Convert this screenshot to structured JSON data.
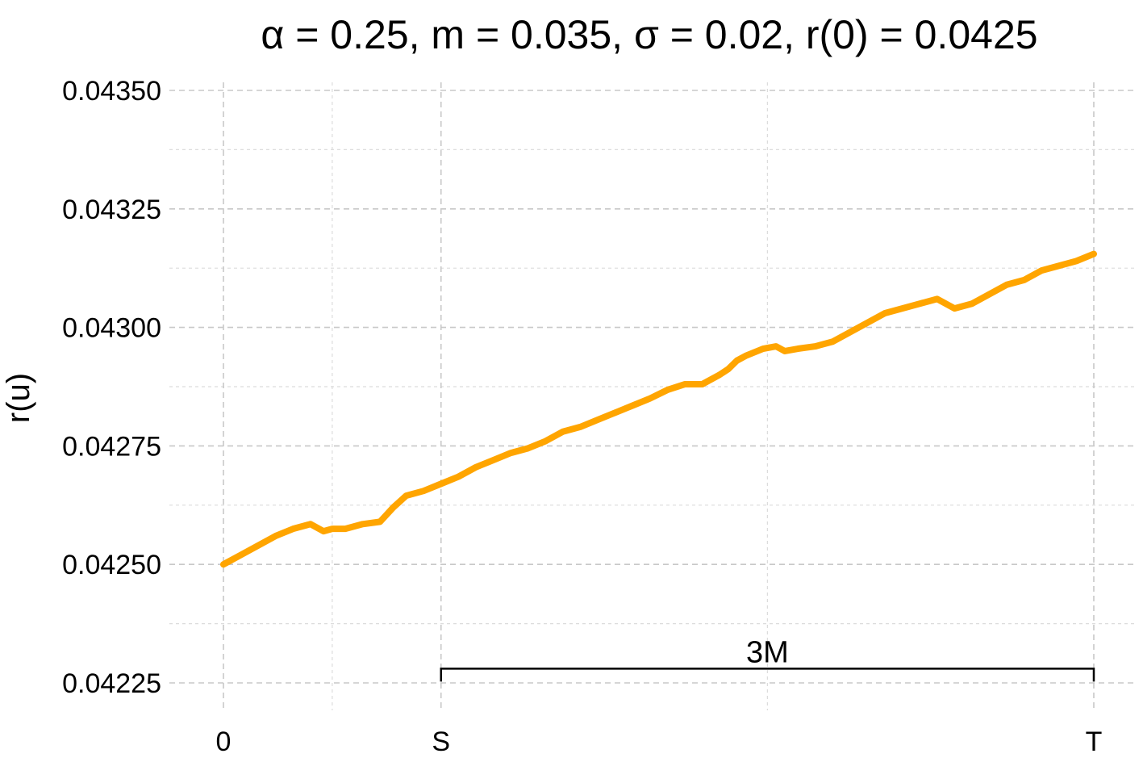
{
  "chart_data": {
    "type": "line",
    "title": "α = 0.25, m = 0.035, σ = 0.02, r(0) = 0.0425",
    "xlabel": "",
    "ylabel": "r(u)",
    "xlim": [
      0,
      1
    ],
    "ylim": [
      0.04225,
      0.0435
    ],
    "y_ticks": [
      {
        "value": 0.04225,
        "label": "0.04225"
      },
      {
        "value": 0.0425,
        "label": "0.04250"
      },
      {
        "value": 0.04275,
        "label": "0.04275"
      },
      {
        "value": 0.043,
        "label": "0.04300"
      },
      {
        "value": 0.04325,
        "label": "0.04325"
      },
      {
        "value": 0.0435,
        "label": "0.04350"
      }
    ],
    "x_ticks": [
      {
        "value": 0,
        "label": "0"
      },
      {
        "value": 0.25,
        "label": "S"
      },
      {
        "value": 1,
        "label": "T"
      }
    ],
    "grid": true,
    "series_color": "#FFA500",
    "x": [
      0,
      0.02,
      0.04,
      0.06,
      0.08,
      0.1,
      0.115,
      0.125,
      0.14,
      0.16,
      0.18,
      0.195,
      0.21,
      0.23,
      0.25,
      0.27,
      0.29,
      0.31,
      0.33,
      0.35,
      0.37,
      0.39,
      0.41,
      0.43,
      0.45,
      0.47,
      0.49,
      0.51,
      0.53,
      0.55,
      0.57,
      0.58,
      0.59,
      0.6,
      0.62,
      0.635,
      0.645,
      0.66,
      0.68,
      0.7,
      0.72,
      0.74,
      0.76,
      0.78,
      0.8,
      0.82,
      0.84,
      0.86,
      0.88,
      0.9,
      0.92,
      0.94,
      0.96,
      0.98,
      1.0
    ],
    "values": [
      0.0425,
      0.04252,
      0.04254,
      0.04256,
      0.042575,
      0.042585,
      0.04257,
      0.042575,
      0.042575,
      0.042585,
      0.04259,
      0.04262,
      0.042645,
      0.042655,
      0.04267,
      0.042685,
      0.042705,
      0.04272,
      0.042735,
      0.042745,
      0.04276,
      0.04278,
      0.04279,
      0.042805,
      0.04282,
      0.042835,
      0.04285,
      0.042868,
      0.04288,
      0.04288,
      0.0429,
      0.042912,
      0.04293,
      0.04294,
      0.042955,
      0.04296,
      0.04295,
      0.042955,
      0.04296,
      0.04297,
      0.04299,
      0.04301,
      0.04303,
      0.04304,
      0.04305,
      0.04306,
      0.04304,
      0.04305,
      0.04307,
      0.04309,
      0.0431,
      0.04312,
      0.04313,
      0.04314,
      0.043155
    ],
    "annotations": [
      {
        "label": "3M",
        "x_start": 0.25,
        "x_end": 1.0,
        "y": 0.04228
      }
    ]
  }
}
